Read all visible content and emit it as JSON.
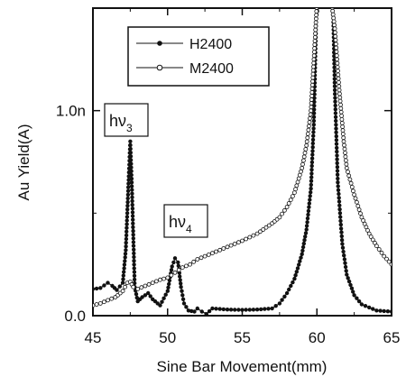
{
  "chart_data": {
    "type": "line",
    "xlabel": "Sine Bar Movement(mm)",
    "ylabel": "Au Yield(A)",
    "xlim": [
      45,
      65
    ],
    "ylim": [
      0,
      1.5e-09
    ],
    "x_ticks": [
      45,
      50,
      55,
      60,
      65
    ],
    "x_tick_labels": [
      "45",
      "50",
      "55",
      "60",
      "65"
    ],
    "y_ticks": [
      0,
      1e-09
    ],
    "y_tick_labels": [
      "0.0",
      "1.0n"
    ],
    "legend": "top-left",
    "series": [
      {
        "name": "H2400",
        "marker": "filled-circle",
        "color": "#111111",
        "x": [
          45.0,
          45.5,
          46.0,
          46.3,
          46.6,
          47.0,
          47.2,
          47.4,
          47.5,
          47.6,
          47.8,
          48.0,
          48.3,
          48.7,
          49.0,
          49.5,
          50.0,
          50.3,
          50.5,
          50.7,
          50.9,
          51.1,
          51.4,
          51.8,
          52.0,
          52.3,
          52.6,
          53.0,
          54.0,
          55.0,
          56.0,
          57.0,
          57.5,
          58.0,
          58.5,
          59.0,
          59.3,
          59.6,
          59.8,
          59.95,
          60.1,
          60.3,
          60.5,
          60.8,
          61.0,
          61.1,
          61.2,
          61.4,
          61.7,
          62.0,
          62.5,
          63.0,
          64.0,
          65.0
        ],
        "y": [
          1.3e-10,
          1.35e-10,
          1.6e-10,
          1.45e-10,
          1.25e-10,
          1.6e-10,
          3.2e-10,
          6.8e-10,
          8.5e-10,
          6.5e-10,
          1.4e-10,
          7e-11,
          9e-11,
          1.1e-10,
          8e-11,
          5e-11,
          1.2e-10,
          2.4e-10,
          2.8e-10,
          2.6e-10,
          1.4e-10,
          6e-11,
          2.5e-11,
          2e-11,
          3.5e-11,
          2e-11,
          8e-12,
          3.5e-11,
          3e-11,
          2.8e-11,
          3e-11,
          3.5e-11,
          6e-11,
          1.1e-10,
          1.8e-10,
          3e-10,
          4.2e-10,
          6.2e-10,
          9.5e-10,
          1.45e-09,
          1.52e-09,
          1.52e-09,
          1.52e-09,
          1.52e-09,
          1.52e-09,
          1.45e-09,
          1.1e-09,
          6.5e-10,
          3.5e-10,
          2e-10,
          1e-10,
          5.5e-11,
          2.5e-11,
          2e-11
        ]
      },
      {
        "name": "M2400",
        "marker": "open-circle",
        "color": "#111111",
        "x": [
          45.0,
          45.5,
          46.0,
          46.5,
          47.0,
          47.3,
          47.5,
          47.7,
          48.0,
          48.5,
          49.0,
          49.5,
          50.0,
          50.5,
          51.0,
          51.5,
          52.0,
          53.0,
          54.0,
          55.0,
          56.0,
          57.0,
          57.5,
          58.0,
          58.5,
          59.0,
          59.3,
          59.6,
          59.8,
          60.0,
          60.2,
          60.5,
          60.8,
          61.0,
          61.2,
          61.5,
          61.8,
          62.0,
          62.5,
          63.0,
          63.5,
          64.0,
          64.5,
          65.0
        ],
        "y": [
          5e-11,
          6e-11,
          7.5e-11,
          9e-11,
          1.2e-10,
          1.6e-10,
          1.65e-10,
          1.4e-10,
          1.3e-10,
          1.45e-10,
          1.6e-10,
          1.75e-10,
          1.85e-10,
          2.1e-10,
          2.35e-10,
          2.5e-10,
          2.75e-10,
          3.05e-10,
          3.35e-10,
          3.65e-10,
          4e-10,
          4.5e-10,
          4.8e-10,
          5.3e-10,
          6e-10,
          7.2e-10,
          8.3e-10,
          1e-09,
          1.25e-09,
          1.52e-09,
          1.52e-09,
          1.52e-09,
          1.52e-09,
          1.52e-09,
          1.4e-09,
          1.1e-09,
          8.5e-10,
          7.2e-10,
          5.9e-10,
          4.8e-10,
          4e-10,
          3.4e-10,
          2.9e-10,
          2.5e-10
        ]
      }
    ],
    "annotations": [
      {
        "base": "hν",
        "sub": "3",
        "x": 46.4,
        "y": 1e-09
      },
      {
        "base": "hν",
        "sub": "4",
        "x": 49.9,
        "y": 4.7e-10
      }
    ]
  }
}
